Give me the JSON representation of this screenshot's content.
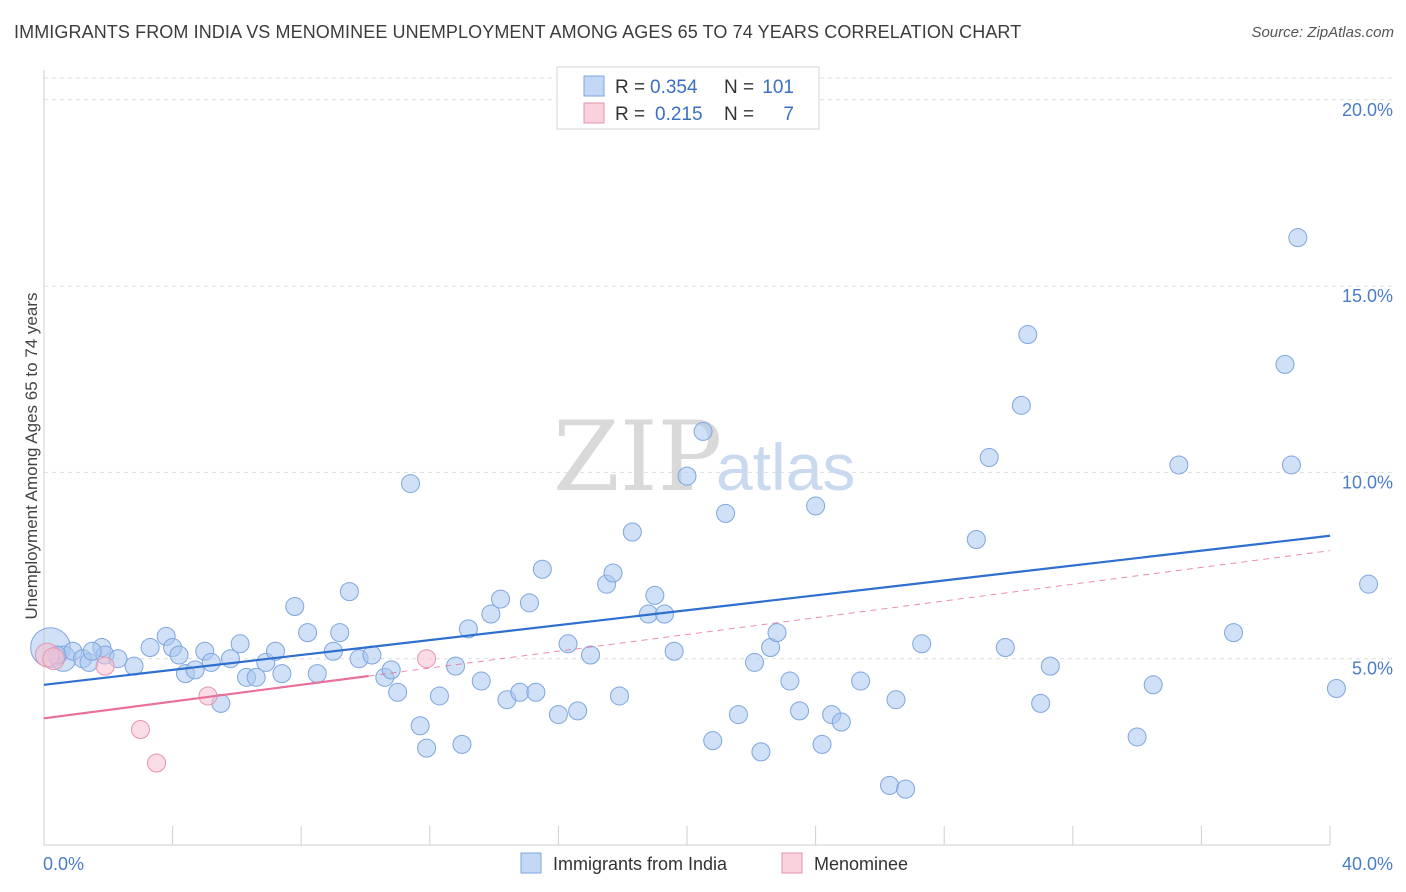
{
  "title": "IMMIGRANTS FROM INDIA VS MENOMINEE UNEMPLOYMENT AMONG AGES 65 TO 74 YEARS CORRELATION CHART",
  "source": "Source: ZipAtlas.com",
  "watermark": {
    "zip": "ZIP",
    "atlas": "atlas"
  },
  "legend": {
    "r_label": "R =",
    "n_label": "N =",
    "series": [
      {
        "r": "0.354",
        "n": "101",
        "color": "#a9c6ef"
      },
      {
        "r": "0.215",
        "n": "7",
        "color": "#f5b8cb"
      }
    ]
  },
  "colors": {
    "blue_fill": "#a9c6ef",
    "blue_stroke": "#7ea6df",
    "blue_line": "#2e6fcf",
    "pink_fill": "#f6c0d1",
    "pink_stroke": "#e893ae",
    "pink_line": "#e8709a",
    "grid": "#dddddd",
    "axis_text": "#4a7cc7"
  },
  "chart_data": {
    "type": "scatter",
    "title": "IMMIGRANTS FROM INDIA VS MENOMINEE UNEMPLOYMENT AMONG AGES 65 TO 74 YEARS CORRELATION CHART",
    "xlabel": "",
    "ylabel": "Unemployment Among Ages 65 to 74 years",
    "xlim": [
      0,
      40
    ],
    "ylim": [
      0,
      20.8
    ],
    "x_tick_labels": [
      "0.0%",
      "40.0%"
    ],
    "y_ticks": [
      5,
      10,
      15,
      20
    ],
    "y_tick_labels": [
      "5.0%",
      "10.0%",
      "15.0%",
      "20.0%"
    ],
    "legend_position": "top-center",
    "series": [
      {
        "name": "Immigrants from India",
        "color": "#a9c6ef",
        "trend": {
          "x": [
            0,
            40
          ],
          "y": [
            4.3,
            8.3
          ]
        },
        "points": [
          {
            "x": 0.2,
            "y": 5.3,
            "s": 2.2
          },
          {
            "x": 0.6,
            "y": 5.0,
            "s": 1.4
          },
          {
            "x": 0.9,
            "y": 5.2
          },
          {
            "x": 1.2,
            "y": 5.0
          },
          {
            "x": 1.4,
            "y": 4.9
          },
          {
            "x": 1.8,
            "y": 5.3
          },
          {
            "x": 1.9,
            "y": 5.1
          },
          {
            "x": 2.3,
            "y": 5.0
          },
          {
            "x": 1.5,
            "y": 5.2
          },
          {
            "x": 2.8,
            "y": 4.8
          },
          {
            "x": 3.3,
            "y": 5.3
          },
          {
            "x": 3.8,
            "y": 5.6
          },
          {
            "x": 4.0,
            "y": 5.3
          },
          {
            "x": 4.2,
            "y": 5.1
          },
          {
            "x": 4.4,
            "y": 4.6
          },
          {
            "x": 4.7,
            "y": 4.7
          },
          {
            "x": 5.0,
            "y": 5.2
          },
          {
            "x": 5.2,
            "y": 4.9
          },
          {
            "x": 5.5,
            "y": 3.8
          },
          {
            "x": 5.8,
            "y": 5.0
          },
          {
            "x": 6.1,
            "y": 5.4
          },
          {
            "x": 6.3,
            "y": 4.5
          },
          {
            "x": 6.6,
            "y": 4.5
          },
          {
            "x": 6.9,
            "y": 4.9
          },
          {
            "x": 7.2,
            "y": 5.2
          },
          {
            "x": 7.4,
            "y": 4.6
          },
          {
            "x": 7.8,
            "y": 6.4
          },
          {
            "x": 8.2,
            "y": 5.7
          },
          {
            "x": 8.5,
            "y": 4.6
          },
          {
            "x": 9.0,
            "y": 5.2
          },
          {
            "x": 9.2,
            "y": 5.7
          },
          {
            "x": 9.5,
            "y": 6.8
          },
          {
            "x": 9.8,
            "y": 5.0
          },
          {
            "x": 10.2,
            "y": 5.1
          },
          {
            "x": 10.6,
            "y": 4.5
          },
          {
            "x": 10.8,
            "y": 4.7
          },
          {
            "x": 11.0,
            "y": 4.1
          },
          {
            "x": 11.4,
            "y": 9.7
          },
          {
            "x": 11.7,
            "y": 3.2
          },
          {
            "x": 11.9,
            "y": 2.6
          },
          {
            "x": 12.3,
            "y": 4.0
          },
          {
            "x": 12.8,
            "y": 4.8
          },
          {
            "x": 13.0,
            "y": 2.7
          },
          {
            "x": 13.2,
            "y": 5.8
          },
          {
            "x": 13.6,
            "y": 4.4
          },
          {
            "x": 13.9,
            "y": 6.2
          },
          {
            "x": 14.2,
            "y": 6.6
          },
          {
            "x": 14.4,
            "y": 3.9
          },
          {
            "x": 14.8,
            "y": 4.1
          },
          {
            "x": 15.1,
            "y": 6.5
          },
          {
            "x": 15.3,
            "y": 4.1
          },
          {
            "x": 15.5,
            "y": 7.4
          },
          {
            "x": 16.0,
            "y": 3.5
          },
          {
            "x": 16.3,
            "y": 5.4
          },
          {
            "x": 16.6,
            "y": 3.6
          },
          {
            "x": 17.0,
            "y": 5.1
          },
          {
            "x": 17.5,
            "y": 7.0
          },
          {
            "x": 17.7,
            "y": 7.3
          },
          {
            "x": 17.9,
            "y": 4.0
          },
          {
            "x": 18.3,
            "y": 8.4
          },
          {
            "x": 18.8,
            "y": 6.2
          },
          {
            "x": 19.0,
            "y": 6.7
          },
          {
            "x": 19.3,
            "y": 6.2
          },
          {
            "x": 19.6,
            "y": 5.2
          },
          {
            "x": 20.0,
            "y": 9.9
          },
          {
            "x": 20.5,
            "y": 11.1
          },
          {
            "x": 20.8,
            "y": 2.8
          },
          {
            "x": 21.2,
            "y": 8.9
          },
          {
            "x": 21.6,
            "y": 3.5
          },
          {
            "x": 22.1,
            "y": 4.9
          },
          {
            "x": 22.3,
            "y": 2.5
          },
          {
            "x": 22.6,
            "y": 5.3
          },
          {
            "x": 22.8,
            "y": 5.7
          },
          {
            "x": 23.2,
            "y": 4.4
          },
          {
            "x": 23.5,
            "y": 3.6
          },
          {
            "x": 24.0,
            "y": 9.1
          },
          {
            "x": 24.2,
            "y": 2.7
          },
          {
            "x": 24.5,
            "y": 3.5
          },
          {
            "x": 24.8,
            "y": 3.3
          },
          {
            "x": 25.4,
            "y": 4.4
          },
          {
            "x": 26.3,
            "y": 1.6
          },
          {
            "x": 26.5,
            "y": 3.9
          },
          {
            "x": 26.8,
            "y": 1.5
          },
          {
            "x": 27.3,
            "y": 5.4
          },
          {
            "x": 29.0,
            "y": 8.2
          },
          {
            "x": 29.4,
            "y": 10.4
          },
          {
            "x": 29.9,
            "y": 5.3
          },
          {
            "x": 30.4,
            "y": 11.8
          },
          {
            "x": 30.6,
            "y": 13.7
          },
          {
            "x": 31.0,
            "y": 3.8
          },
          {
            "x": 31.3,
            "y": 4.8
          },
          {
            "x": 34.0,
            "y": 2.9
          },
          {
            "x": 34.5,
            "y": 4.3
          },
          {
            "x": 35.3,
            "y": 10.2
          },
          {
            "x": 37.0,
            "y": 5.7
          },
          {
            "x": 38.6,
            "y": 12.9
          },
          {
            "x": 38.8,
            "y": 10.2
          },
          {
            "x": 39.0,
            "y": 16.3
          },
          {
            "x": 40.2,
            "y": 4.2
          },
          {
            "x": 41.2,
            "y": 7.0
          },
          {
            "x": 0.4,
            "y": 5.1
          }
        ]
      },
      {
        "name": "Menominee",
        "color": "#f6c0d1",
        "trend": {
          "x": [
            0,
            40
          ],
          "y": [
            3.4,
            7.9
          ]
        },
        "trend_solid_until_x": 10.1,
        "points": [
          {
            "x": 0.1,
            "y": 5.1,
            "s": 1.3
          },
          {
            "x": 0.3,
            "y": 5.0,
            "s": 1.2
          },
          {
            "x": 1.9,
            "y": 4.8
          },
          {
            "x": 3.5,
            "y": 2.2
          },
          {
            "x": 3.0,
            "y": 3.1
          },
          {
            "x": 5.1,
            "y": 4.0
          },
          {
            "x": 11.9,
            "y": 5.0
          }
        ]
      }
    ]
  }
}
